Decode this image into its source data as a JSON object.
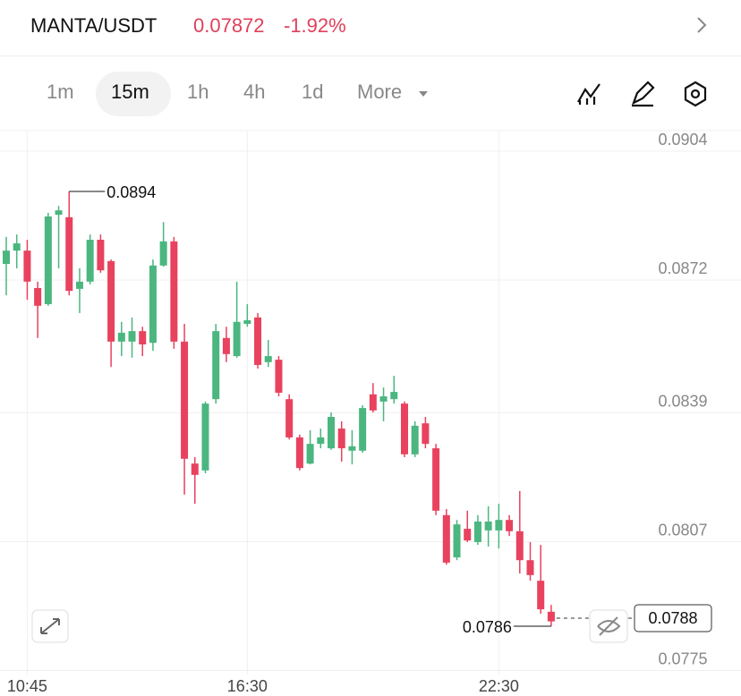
{
  "header": {
    "pair": "MANTA/USDT",
    "price": "0.07872",
    "change": "-1.92%"
  },
  "tabs": [
    "1m",
    "15m",
    "1h",
    "4h",
    "1d",
    "More"
  ],
  "chart_data": {
    "type": "candlestick",
    "categories": [
      null,
      null,
      "10:45",
      null,
      null,
      null,
      null,
      null,
      null,
      null,
      null,
      null,
      null,
      null,
      null,
      null,
      null,
      null,
      null,
      null,
      null,
      null,
      null,
      "16:30",
      null,
      null,
      null,
      null,
      null,
      null,
      null,
      null,
      null,
      null,
      null,
      null,
      null,
      null,
      null,
      null,
      null,
      null,
      null,
      null,
      null,
      null,
      null,
      "22:30",
      null,
      null,
      null,
      null,
      null
    ],
    "series": [
      {
        "name": "open",
        "values": [
          0.0876,
          0.08793,
          0.08793,
          0.087,
          0.0866,
          0.08882,
          0.08876,
          0.08698,
          0.08716,
          0.0882,
          0.08767,
          0.08567,
          0.08567,
          0.08593,
          0.08564,
          0.08756,
          0.08816,
          0.08567,
          0.08264,
          0.08247,
          0.08424,
          0.08576,
          0.08531,
          0.08611,
          0.08627,
          0.08516,
          0.08522,
          0.08424,
          0.08329,
          0.08264,
          0.08313,
          0.08302,
          0.08351,
          0.08296,
          0.08296,
          0.08436,
          0.08418,
          0.08424,
          0.08413,
          0.08287,
          0.08364,
          0.08302,
          0.08136,
          0.08031,
          0.08102,
          0.08069,
          0.08098,
          0.08098,
          0.08124,
          0.08096,
          0.08024,
          0.07973,
          0.07896
        ]
      },
      {
        "name": "high",
        "values": [
          0.08827,
          0.08833,
          0.0882,
          0.08716,
          0.08887,
          0.08904,
          0.0894,
          0.08749,
          0.08833,
          0.08833,
          0.08771,
          0.08616,
          0.08627,
          0.08604,
          0.08771,
          0.08864,
          0.08827,
          0.08611,
          0.0828,
          0.08418,
          0.08611,
          0.08604,
          0.08716,
          0.0866,
          0.08638,
          0.08571,
          0.08531,
          0.08436,
          0.08336,
          0.08347,
          0.08351,
          0.08391,
          0.08369,
          0.08347,
          0.08409,
          0.08464,
          0.08453,
          0.08482,
          0.08418,
          0.08369,
          0.0838,
          0.08313,
          0.08151,
          0.08124,
          0.08147,
          0.08136,
          0.08158,
          0.08164,
          0.08136,
          0.08196,
          0.08069,
          0.08062,
          0.07913
        ]
      },
      {
        "name": "low",
        "values": [
          0.08682,
          0.08749,
          0.08671,
          0.08576,
          0.08656,
          0.08749,
          0.08682,
          0.08638,
          0.08709,
          0.08738,
          0.08504,
          0.08531,
          0.08527,
          0.08531,
          0.08544,
          0.08753,
          0.08549,
          0.08187,
          0.08164,
          0.0824,
          0.08413,
          0.08516,
          0.08527,
          0.08604,
          0.085,
          0.08504,
          0.08431,
          0.08324,
          0.08247,
          0.08262,
          0.08302,
          0.08298,
          0.08269,
          0.08262,
          0.08291,
          0.08391,
          0.08369,
          0.08413,
          0.0828,
          0.0828,
          0.08302,
          0.08136,
          0.08013,
          0.08024,
          0.08069,
          0.08062,
          0.08058,
          0.08053,
          0.08084,
          0.07991,
          0.07973,
          0.07891,
          0.0786
        ]
      },
      {
        "name": "close",
        "values": [
          0.08793,
          0.08811,
          0.08716,
          0.08656,
          0.08878,
          0.08893,
          0.08693,
          0.08716,
          0.0882,
          0.08744,
          0.08567,
          0.08589,
          0.08593,
          0.0856,
          0.08756,
          0.08816,
          0.08567,
          0.08276,
          0.08236,
          0.08413,
          0.08593,
          0.08536,
          0.08616,
          0.0862,
          0.08509,
          0.08531,
          0.0844,
          0.08329,
          0.08253,
          0.08313,
          0.08329,
          0.0838,
          0.08302,
          0.08307,
          0.08402,
          0.08396,
          0.08431,
          0.08442,
          0.08287,
          0.08358,
          0.08313,
          0.08147,
          0.08018,
          0.08113,
          0.08073,
          0.0812,
          0.0812,
          0.08124,
          0.08096,
          0.08024,
          0.07987,
          0.07902,
          0.07872
        ]
      }
    ],
    "up_color": "#4bb67f",
    "down_color": "#e8425e",
    "ylim": [
      0.0774,
      0.0909
    ],
    "yticks": [
      0.0904,
      0.0872,
      0.0839,
      0.0807,
      0.0775
    ],
    "grid": true,
    "max_value": 0.0894,
    "min_value": 0.0786,
    "last_price": 0.0788
  }
}
